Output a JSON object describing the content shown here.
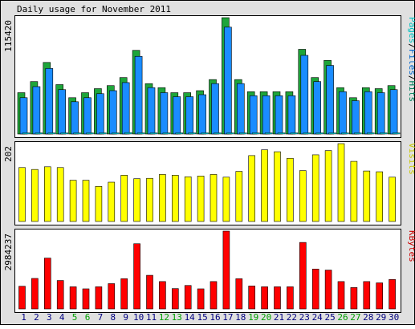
{
  "title": "Daily usage for November 2011",
  "colors": {
    "background": "#e0e0e0",
    "panel": "#ffffff",
    "hits": "#00805c",
    "hits_fill": "#1ea53a",
    "files": "#0066cc",
    "files_fill": "#1a8cff",
    "pages": "#00c0c0",
    "visits": "#c8c800",
    "visits_fill": "#ffff00",
    "kbytes": "#cc0000",
    "kbytes_fill": "#ff0000",
    "weekday_label": "#000080",
    "weekend_label": "#00a000"
  },
  "chart_data": [
    {
      "type": "bar",
      "title": "Daily usage for November 2011",
      "legend": [
        "Pages",
        "Files",
        "Hits"
      ],
      "legend_colors": [
        "#00c0c0",
        "#0066cc",
        "#00805c"
      ],
      "ymax_label": "115420",
      "ylim": [
        0,
        115420
      ],
      "categories": [
        "1",
        "2",
        "3",
        "4",
        "5",
        "6",
        "7",
        "8",
        "9",
        "10",
        "11",
        "12",
        "13",
        "14",
        "15",
        "16",
        "17",
        "18",
        "19",
        "20",
        "21",
        "22",
        "23",
        "24",
        "25",
        "26",
        "27",
        "28",
        "29",
        "30"
      ],
      "weekend_days": [
        "5",
        "6",
        "12",
        "13",
        "19",
        "20",
        "26",
        "27"
      ],
      "series": [
        {
          "name": "Hits",
          "values": [
            41000,
            52000,
            71000,
            49000,
            36000,
            41000,
            45000,
            48000,
            56000,
            83000,
            50000,
            46000,
            41000,
            41000,
            43000,
            54000,
            115420,
            54000,
            42000,
            42000,
            42000,
            42000,
            84000,
            56000,
            73000,
            46000,
            36000,
            46000,
            45000,
            48000
          ]
        },
        {
          "name": "Files",
          "values": [
            36000,
            47000,
            65000,
            44000,
            32000,
            36000,
            40000,
            43000,
            51000,
            77000,
            46000,
            41000,
            37000,
            37000,
            39000,
            50000,
            106000,
            50000,
            38000,
            38000,
            38000,
            38000,
            78000,
            52000,
            68000,
            42000,
            33000,
            42000,
            41000,
            44000
          ]
        },
        {
          "name": "Pages",
          "values": [
            300,
            300,
            300,
            300,
            300,
            300,
            300,
            300,
            1500,
            300,
            300,
            300,
            300,
            300,
            300,
            300,
            300,
            300,
            300,
            300,
            300,
            300,
            300,
            300,
            300,
            300,
            300,
            300,
            300,
            300
          ]
        }
      ]
    },
    {
      "type": "bar",
      "legend": [
        "Visits"
      ],
      "legend_colors": [
        "#c8c800"
      ],
      "ymax_label": "202",
      "ylim": [
        0,
        202
      ],
      "categories": [
        "1",
        "2",
        "3",
        "4",
        "5",
        "6",
        "7",
        "8",
        "9",
        "10",
        "11",
        "12",
        "13",
        "14",
        "15",
        "16",
        "17",
        "18",
        "19",
        "20",
        "21",
        "22",
        "23",
        "24",
        "25",
        "26",
        "27",
        "28",
        "29",
        "30"
      ],
      "series": [
        {
          "name": "Visits",
          "values": [
            140,
            135,
            142,
            140,
            107,
            107,
            91,
            102,
            120,
            111,
            112,
            122,
            120,
            116,
            118,
            122,
            115,
            130,
            171,
            186,
            181,
            164,
            132,
            173,
            184,
            202,
            156,
            131,
            129,
            115
          ]
        }
      ]
    },
    {
      "type": "bar",
      "legend": [
        "KBytes"
      ],
      "legend_colors": [
        "#cc0000"
      ],
      "ymax_label": "2984237",
      "ylim": [
        0,
        2984237
      ],
      "categories": [
        "1",
        "2",
        "3",
        "4",
        "5",
        "6",
        "7",
        "8",
        "9",
        "10",
        "11",
        "12",
        "13",
        "14",
        "15",
        "16",
        "17",
        "18",
        "19",
        "20",
        "21",
        "22",
        "23",
        "24",
        "25",
        "26",
        "27",
        "28",
        "29",
        "30"
      ],
      "series": [
        {
          "name": "KBytes",
          "values": [
            870000,
            1170000,
            1950000,
            1090000,
            850000,
            770000,
            850000,
            970000,
            1160000,
            2500000,
            1290000,
            1050000,
            780000,
            900000,
            770000,
            1050000,
            2984237,
            1160000,
            880000,
            850000,
            850000,
            850000,
            2550000,
            1530000,
            1490000,
            1050000,
            820000,
            1050000,
            1000000,
            1130000
          ]
        }
      ]
    }
  ]
}
